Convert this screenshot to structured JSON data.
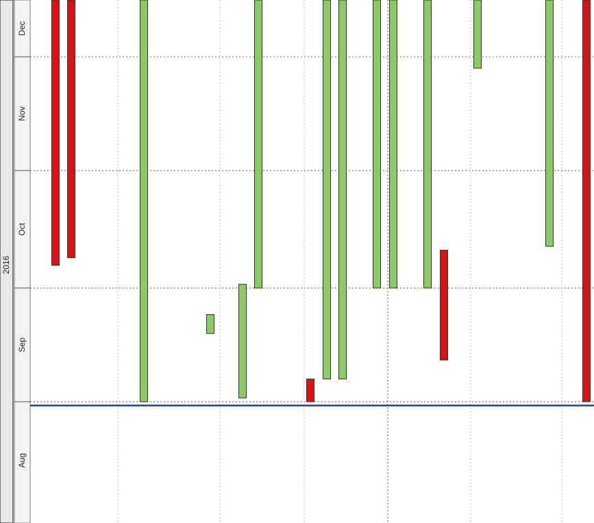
{
  "chart_data": {
    "type": "timeline",
    "orientation": "vertical",
    "year_label": "2016",
    "time_axis": {
      "ticks": [
        "Aug",
        "Sep",
        "Oct",
        "Nov",
        "Dec"
      ],
      "range": [
        "2016-07-31",
        "2016-12-16"
      ],
      "grid": true,
      "reference_line": "2016-08-31"
    },
    "colors": {
      "green": "#8ec86a",
      "red": "#d4141b",
      "reference_line": "#1f3fa8",
      "grid": "#aaaaaa"
    },
    "series": [
      {
        "color": "red",
        "start": "2016-10-07",
        "end": "2016-12-16"
      },
      {
        "color": "red",
        "start": "2016-10-09",
        "end": "2016-12-16"
      },
      {
        "color": "green",
        "start": "2016-09-01",
        "end": "2016-12-16"
      },
      {
        "color": "green",
        "start": "2016-09-19",
        "end": "2016-09-24"
      },
      {
        "color": "green",
        "start": "2016-09-02",
        "end": "2016-10-02"
      },
      {
        "color": "green",
        "start": "2016-10-01",
        "end": "2016-12-16"
      },
      {
        "color": "red",
        "start": "2016-09-01",
        "end": "2016-09-07"
      },
      {
        "color": "green",
        "start": "2016-09-07",
        "end": "2016-12-16"
      },
      {
        "color": "green",
        "start": "2016-09-07",
        "end": "2016-12-16"
      },
      {
        "color": "green",
        "start": "2016-10-01",
        "end": "2016-12-16"
      },
      {
        "color": "green",
        "start": "2016-10-01",
        "end": "2016-12-16"
      },
      {
        "color": "green",
        "start": "2016-10-01",
        "end": "2016-12-16"
      },
      {
        "color": "red",
        "start": "2016-09-12",
        "end": "2016-10-11"
      },
      {
        "color": "green",
        "start": "2016-11-28",
        "end": "2016-12-16"
      },
      {
        "color": "green",
        "start": "2016-10-12",
        "end": "2016-12-16"
      },
      {
        "color": "red",
        "start": "2016-09-01",
        "end": "2016-12-16"
      }
    ]
  }
}
